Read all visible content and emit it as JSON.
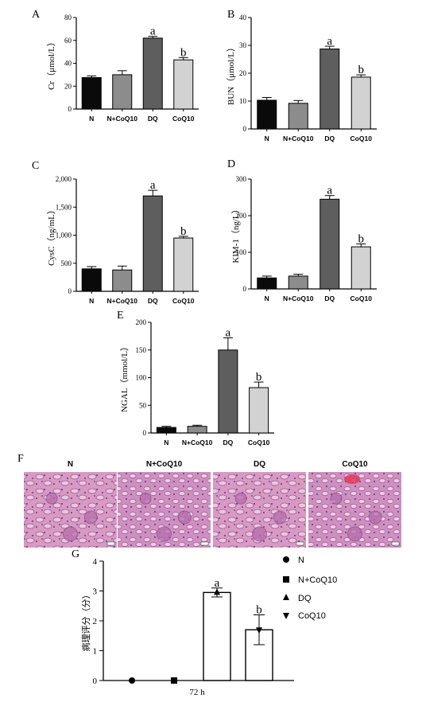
{
  "chart_data": [
    {
      "panel": "A",
      "type": "bar",
      "ylabel": "Cr（μmol/L）",
      "categories": [
        "N",
        "N+CoQ10",
        "DQ",
        "CoQ10"
      ],
      "values": [
        27.5,
        30,
        62,
        43
      ],
      "errors": [
        1.5,
        3.5,
        1.5,
        2
      ],
      "significance": [
        "",
        "",
        "a",
        "b"
      ],
      "colors": [
        "#0a0a0a",
        "#8c8c8c",
        "#5e5e5e",
        "#d2d2d2"
      ],
      "ylim": [
        0,
        80
      ],
      "yticks": [
        "0",
        "20",
        "40",
        "60",
        "80"
      ]
    },
    {
      "panel": "B",
      "type": "bar",
      "ylabel": "BUN（μmol/L）",
      "categories": [
        "N",
        "N+CoQ10",
        "DQ",
        "CoQ10"
      ],
      "values": [
        10.3,
        9.2,
        28.7,
        18.6
      ],
      "errors": [
        1,
        1,
        1,
        0.8
      ],
      "significance": [
        "",
        "",
        "a",
        "b"
      ],
      "colors": [
        "#0a0a0a",
        "#8c8c8c",
        "#5e5e5e",
        "#d2d2d2"
      ],
      "ylim": [
        0,
        40
      ],
      "yticks": [
        "0",
        "10",
        "20",
        "30",
        "40"
      ]
    },
    {
      "panel": "C",
      "type": "bar",
      "ylabel": "CysC（ng/mL）",
      "categories": [
        "N",
        "N+CoQ10",
        "DQ",
        "CoQ10"
      ],
      "values": [
        400,
        380,
        1700,
        950
      ],
      "errors": [
        40,
        70,
        100,
        30
      ],
      "significance": [
        "",
        "",
        "a",
        "b"
      ],
      "colors": [
        "#0a0a0a",
        "#8c8c8c",
        "#5e5e5e",
        "#d2d2d2"
      ],
      "ylim": [
        0,
        2000
      ],
      "yticks": [
        "0",
        "500",
        "1,000",
        "1,500",
        "2,000"
      ]
    },
    {
      "panel": "D",
      "type": "bar",
      "ylabel": "KIM-1（ng/L）",
      "categories": [
        "N",
        "N+CoQ10",
        "DQ",
        "CoQ10"
      ],
      "values": [
        30,
        35,
        245,
        115
      ],
      "errors": [
        5,
        5,
        10,
        8
      ],
      "significance": [
        "",
        "",
        "a",
        "b"
      ],
      "colors": [
        "#0a0a0a",
        "#8c8c8c",
        "#5e5e5e",
        "#d2d2d2"
      ],
      "ylim": [
        0,
        300
      ],
      "yticks": [
        "0",
        "100",
        "200",
        "300"
      ]
    },
    {
      "panel": "E",
      "type": "bar",
      "ylabel": "NGAL（mmol/L）",
      "categories": [
        "N",
        "N+CoQ10",
        "DQ",
        "CoQ10"
      ],
      "values": [
        10,
        12,
        150,
        82
      ],
      "errors": [
        2,
        2,
        22,
        10
      ],
      "significance": [
        "",
        "",
        "a",
        "b"
      ],
      "colors": [
        "#0a0a0a",
        "#8c8c8c",
        "#5e5e5e",
        "#d2d2d2"
      ],
      "ylim": [
        0,
        200
      ],
      "yticks": [
        "0",
        "50",
        "100",
        "150",
        "200"
      ]
    },
    {
      "panel": "G",
      "type": "bar",
      "ylabel": "病理评分（分）",
      "xlabel": "72 h",
      "series": [
        {
          "name": "N",
          "value": 0,
          "error": 0,
          "marker": "circle",
          "significance": ""
        },
        {
          "name": "N+CoQ10",
          "value": 0,
          "error": 0,
          "marker": "square",
          "significance": ""
        },
        {
          "name": "DQ",
          "value": 2.95,
          "error": 0.15,
          "marker": "triangle-up",
          "significance": "a"
        },
        {
          "name": "CoQ10",
          "value": 1.7,
          "error": 0.5,
          "marker": "triangle-down",
          "significance": "b"
        }
      ],
      "ylim": [
        0,
        4
      ],
      "yticks": [
        "0",
        "1",
        "2",
        "3",
        "4"
      ],
      "legend_position": "right"
    }
  ],
  "histology": {
    "panel": "F",
    "labels": [
      "N",
      "N+CoQ10",
      "DQ",
      "CoQ10"
    ]
  }
}
